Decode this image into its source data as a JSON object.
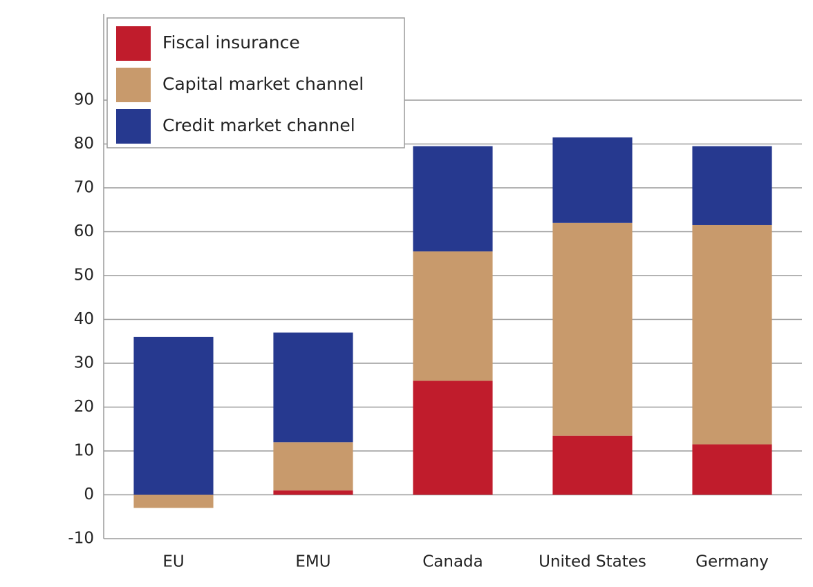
{
  "chart_data": {
    "type": "stacked-bar",
    "categories": [
      "EU",
      "EMU",
      "Canada",
      "United States",
      "Germany"
    ],
    "series": [
      {
        "name": "Fiscal insurance",
        "color": "#c01c2c",
        "values": [
          0,
          1,
          26,
          13.5,
          11.5
        ]
      },
      {
        "name": "Capital market channel",
        "color": "#c89a6c",
        "values": [
          -3,
          11,
          29.5,
          48.5,
          50
        ]
      },
      {
        "name": "Credit market channel",
        "color": "#26398f",
        "values": [
          36,
          25,
          24,
          19.5,
          18
        ]
      }
    ],
    "ylim": [
      -10,
      90
    ],
    "yticks": [
      -10,
      0,
      10,
      20,
      30,
      40,
      50,
      60,
      70,
      80,
      90
    ],
    "grid": true,
    "legend": "top-left"
  }
}
